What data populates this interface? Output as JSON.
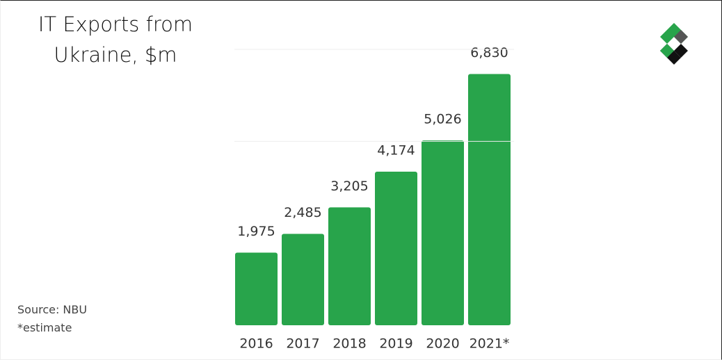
{
  "chart_data": {
    "type": "bar",
    "title": "IT Exports from Ukraine, $m",
    "categories": [
      "2016",
      "2017",
      "2018",
      "2019",
      "2020",
      "2021*"
    ],
    "values": [
      1975,
      2485,
      3205,
      4174,
      5026,
      6830
    ],
    "value_labels": [
      "1,975",
      "2,485",
      "3,205",
      "4,174",
      "5,026",
      "6,830"
    ],
    "color": "#28a44b",
    "ylim": [
      0,
      7500
    ],
    "yticks": [
      5000,
      7500
    ],
    "grid": true,
    "notes": [
      "Source: NBU",
      "*estimate"
    ]
  }
}
